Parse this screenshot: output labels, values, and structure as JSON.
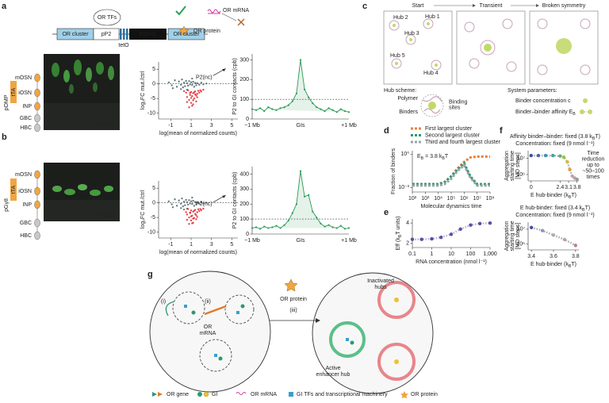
{
  "a": {
    "letter": "a",
    "schematic": {
      "or_tfs": "OR TFs",
      "cluster_left": "OR cluster",
      "promoter": "pP2",
      "operator": "tetO",
      "transgene": "P2(nc)",
      "cluster_right": "OR cluster",
      "mrna": "OR mRNA",
      "protein": "OR protein"
    },
    "lineage": {
      "cells": [
        "mOSN",
        "iOSN",
        "INP",
        "GBC",
        "HBC"
      ],
      "promoter": "pOMP",
      "driver": "tTA"
    },
    "image_labels": {
      "p2": "P2",
      "gfp": "GFP"
    },
    "volcano": {
      "type": "scatter",
      "xlabel": "log(mean of normalized counts)",
      "ylabel": "log₂FC mut./ctrl",
      "xlim": [
        -2.2,
        5.6
      ],
      "xticks": [
        -1,
        1,
        3,
        5
      ],
      "ylim": [
        -12,
        7.5
      ],
      "yticks": [
        5,
        0,
        -5,
        -10
      ],
      "reference_line": 0,
      "series": [
        {
          "color": "#4d6466",
          "x": [
            -1.2,
            -0.9,
            -0.6,
            -0.4,
            -0.2,
            0,
            0.1,
            0.2,
            0.3,
            0.4,
            0.5,
            0.6,
            0.7,
            0.8,
            0.9,
            1.0,
            1.1,
            1.2,
            1.3,
            1.4,
            1.5,
            1.6,
            1.8,
            2.0,
            2.2,
            2.5,
            -0.8,
            0.0,
            0.6,
            1.1
          ],
          "y": [
            0.5,
            -0.5,
            1.2,
            -1.0,
            0.8,
            -0.3,
            1.5,
            -1.2,
            0.4,
            -0.8,
            1.0,
            0.2,
            -0.6,
            0.9,
            -0.2,
            0.5,
            -0.4,
            0.7,
            -1.0,
            0.3,
            -0.5,
            0.2,
            -0.3,
            0.4,
            -0.2,
            0.1,
            -1.5,
            -1.8,
            -2.0,
            1.8
          ]
        },
        {
          "color": "#e3232c",
          "x": [
            0.3,
            0.5,
            0.6,
            0.7,
            0.8,
            0.9,
            1.0,
            1.0,
            1.1,
            1.2,
            1.2,
            1.3,
            1.4,
            1.5,
            1.5,
            1.6,
            1.7,
            1.8,
            1.9,
            2.0,
            0.8,
            1.0,
            1.2,
            1.4,
            0.6,
            1.1,
            1.3,
            0.9,
            1.6,
            2.2
          ],
          "y": [
            -2.5,
            -3.0,
            -4.5,
            -2.2,
            -5.5,
            -3.8,
            -6.5,
            -2.8,
            -4.2,
            -7.0,
            -3.2,
            -5.0,
            -2.6,
            -4.0,
            -6.0,
            -3.4,
            -2.4,
            -3.0,
            -2.2,
            -2.6,
            -8.0,
            -4.8,
            -5.6,
            -3.6,
            -6.2,
            -7.5,
            -2.9,
            -3.1,
            -4.6,
            -2.0
          ]
        }
      ],
      "annotation": {
        "label": "P2(nc)",
        "x": 4.4,
        "y": 5.2
      }
    },
    "contacts": {
      "type": "line",
      "ylabel": "P2 to GI contacts (cpb)",
      "categories": [
        "−1 Mb",
        null,
        null,
        null,
        null,
        null,
        null,
        null,
        null,
        null,
        null,
        null,
        "GIs",
        null,
        null,
        null,
        null,
        null,
        null,
        null,
        null,
        null,
        null,
        null,
        "+1 Mb"
      ],
      "values": [
        50,
        45,
        55,
        40,
        60,
        50,
        45,
        55,
        60,
        70,
        90,
        130,
        300,
        150,
        110,
        80,
        60,
        50,
        40,
        55,
        45,
        35,
        50,
        40,
        35
      ],
      "ylim": [
        0,
        330
      ],
      "yticks": [
        0,
        100,
        200,
        300
      ],
      "threshold": 100,
      "color": "#2b9a55"
    }
  },
  "b": {
    "letter": "b",
    "lineage": {
      "cells": [
        "mOSN",
        "iOSN",
        "INP",
        "GBC",
        "HBC"
      ],
      "promoter": "pGγ8",
      "driver": "tTA"
    },
    "image_labels": {
      "p2": "P2",
      "gfp": "GFP"
    },
    "volcano": {
      "type": "scatter",
      "xlabel": "log(mean of normalized counts)",
      "ylabel": "log₂FC mut./ctrl",
      "xlim": [
        -2.2,
        5.6
      ],
      "xticks": [
        -1,
        1,
        3,
        5
      ],
      "ylim": [
        -12,
        7.5
      ],
      "yticks": [
        5,
        0,
        -5,
        -10
      ],
      "reference_line": 0,
      "series": [
        {
          "color": "#4d6466",
          "x": [
            -1.2,
            -0.9,
            -0.6,
            -0.4,
            -0.2,
            0,
            0.1,
            0.2,
            0.3,
            0.4,
            0.5,
            0.6,
            0.7,
            0.8,
            0.9,
            1.0,
            1.1,
            1.2,
            1.3,
            1.4,
            1.5,
            1.6,
            1.8,
            2.0,
            2.2,
            2.5,
            -0.8,
            0.0,
            0.6,
            1.1
          ],
          "y": [
            0.5,
            -0.5,
            1.2,
            -1.0,
            0.8,
            -0.3,
            1.5,
            -1.2,
            0.4,
            -0.8,
            1.0,
            0.2,
            -0.6,
            0.9,
            -0.2,
            0.5,
            -0.4,
            0.7,
            -1.0,
            0.3,
            -0.5,
            0.2,
            -0.3,
            0.4,
            -0.2,
            0.1,
            -1.5,
            -1.8,
            -2.0,
            1.8
          ]
        },
        {
          "color": "#e3232c",
          "x": [
            0.3,
            0.5,
            0.6,
            0.7,
            0.8,
            0.9,
            1.0,
            1.0,
            1.1,
            1.2,
            1.2,
            1.3,
            1.4,
            1.5,
            1.5,
            1.6,
            1.7,
            1.8,
            1.9,
            2.0,
            0.8,
            1.0,
            1.2,
            1.4,
            0.6,
            1.1,
            1.3,
            0.9,
            1.6,
            2.2
          ],
          "y": [
            -2.3,
            -3.2,
            -4.0,
            -2.1,
            -5.0,
            -3.5,
            -6.0,
            -2.6,
            -4.4,
            -6.8,
            -3.0,
            -5.2,
            -2.4,
            -4.2,
            -5.6,
            -3.2,
            -2.2,
            -2.8,
            -2.1,
            -2.5,
            -7.2,
            -4.6,
            -5.4,
            -3.8,
            -5.8,
            -7.0,
            -2.7,
            -3.3,
            -4.8,
            -2.0
          ]
        }
      ],
      "annotation": {
        "label": "P2(nc)",
        "x": 4.4,
        "y": 2.6
      }
    },
    "contacts": {
      "type": "line",
      "ylabel": "P2 to GI contacts (cpb)",
      "categories": [
        "−1 Mb",
        null,
        null,
        null,
        null,
        null,
        null,
        null,
        null,
        null,
        null,
        null,
        "GIs",
        null,
        null,
        null,
        null,
        null,
        null,
        null,
        null,
        null,
        null,
        null,
        "+1 Mb"
      ],
      "values": [
        40,
        45,
        35,
        50,
        40,
        45,
        55,
        40,
        60,
        90,
        140,
        200,
        420,
        250,
        260,
        150,
        110,
        70,
        50,
        60,
        45,
        40,
        55,
        35,
        40
      ],
      "ylim": [
        0,
        450
      ],
      "yticks": [
        0,
        100,
        200,
        300,
        400
      ],
      "threshold": 100,
      "color": "#2b9a55"
    }
  },
  "c": {
    "letter": "c",
    "stages": [
      "Start",
      "Transient",
      "Broken symmetry"
    ],
    "hubs": [
      "Hub 1",
      "Hub 2",
      "Hub 3",
      "Hub 4",
      "Hub 5"
    ],
    "scheme_title": "Hub scheme:",
    "scheme_labels": {
      "polymer": "Polymer",
      "binders": "Binders",
      "sites": [
        "Binding",
        "sites"
      ]
    },
    "params_title": "System parameters:",
    "params": {
      "concentration": "Binder concentration c",
      "affinity": {
        "parts": [
          "Binder–binder affinity E",
          "B"
        ]
      }
    }
  },
  "d": {
    "letter": "d",
    "type": "line",
    "ylabel": "Fraction of binders",
    "xlabel": "Molecular dynamics time",
    "annotation": {
      "parts": [
        "E",
        "B",
        " = 3.8 k",
        "B",
        "T"
      ]
    },
    "xlog": true,
    "ylog": true,
    "x": [
      100,
      300,
      1000,
      3000,
      10000,
      30000,
      100000,
      300000,
      1000000,
      3000000,
      10000000,
      30000000,
      100000000
    ],
    "xlim": [
      100,
      100000000
    ],
    "xticks": [
      {
        "value": 100,
        "label": "10²"
      },
      {
        "value": 1000,
        "label": "10³"
      },
      {
        "value": 10000,
        "label": "10⁴"
      },
      {
        "value": 100000,
        "label": "10⁵"
      },
      {
        "value": 1000000,
        "label": "10⁶"
      },
      {
        "value": 10000000,
        "label": "10⁷"
      },
      {
        "value": 100000000,
        "label": "10⁸"
      }
    ],
    "ylim": [
      0.0004,
      2
    ],
    "yticks": [
      {
        "value": 0.001,
        "label": "10⁻³"
      },
      {
        "value": 1,
        "label": "10⁰"
      }
    ],
    "series": [
      {
        "name": "First largest cluster",
        "color": "#e8803a",
        "values": [
          0.002,
          0.002,
          0.002,
          0.002,
          0.002,
          0.003,
          0.01,
          0.05,
          0.2,
          0.5,
          0.6,
          0.6,
          0.6
        ]
      },
      {
        "name": "Second largest cluster",
        "color": "#2a9a73",
        "values": [
          0.002,
          0.002,
          0.002,
          0.002,
          0.002,
          0.003,
          0.01,
          0.04,
          0.15,
          0.01,
          0.002,
          0.002,
          0.002
        ]
      },
      {
        "name": "Third and fourth largest cluster",
        "color": "#9aa3a8",
        "values": [
          0.0015,
          0.0015,
          0.0015,
          0.0015,
          0.0015,
          0.002,
          0.006,
          0.03,
          0.1,
          0.008,
          0.0015,
          0.0015,
          0.0015
        ]
      }
    ]
  },
  "e": {
    "letter": "e",
    "type": "line",
    "ylabel": {
      "parts": [
        "Eff (k",
        "B",
        "T units)"
      ]
    },
    "xlabel": "RNA concentration (nmol l⁻¹)",
    "xlog": true,
    "x": [
      0.1,
      0.3,
      1,
      3,
      10,
      30,
      100,
      300,
      1000
    ],
    "values": [
      2.4,
      2.4,
      2.45,
      2.6,
      2.9,
      3.4,
      3.8,
      3.95,
      4.0
    ],
    "xlim": [
      0.1,
      1000
    ],
    "xticks": [
      0.1,
      1,
      10,
      100,
      {
        "value": 1000,
        "label": "1,000"
      }
    ],
    "ylim": [
      1.6,
      4.4
    ],
    "yticks": [
      2,
      4
    ],
    "color": "#5a4ea0",
    "line_color": "#b6aedc"
  },
  "f": {
    "letter": "f",
    "top": {
      "type": "line",
      "header": [
        {
          "parts": [
            "Affinity binder–binder: fixed (3.8 k",
            "B",
            "T)"
          ]
        },
        "Concentration: fixed (9 nmol l⁻¹)"
      ],
      "ylabel": [
        "Aggregation",
        "starting time",
        "[MD steps]"
      ],
      "xlabel": {
        "parts": [
          "E hub-binder (k",
          "B",
          "T)"
        ]
      },
      "note": [
        "Time",
        "reduction",
        "up to",
        "~50–100",
        "times"
      ],
      "x": [
        0,
        0.6,
        1.2,
        1.8,
        2.4,
        2.7,
        3.0,
        3.2,
        3.4,
        3.6,
        3.8
      ],
      "values": [
        15000000,
        15000000,
        15000000,
        15000000,
        14000000,
        12000000,
        6000000,
        2000000,
        800000,
        600000,
        500000
      ],
      "colors": [
        "#3d4fa0",
        "#4a66b0",
        "#3f8fb8",
        "#3aa69a",
        "#56b36a",
        "#9cbf4a",
        "#d9b93a",
        "#e89a3a",
        "#c9a0b0",
        "#a8a8b0",
        "#9a9aa0"
      ],
      "line_color": "#a9a9ad",
      "ylog": true,
      "xlim": [
        -0.25,
        3.95
      ],
      "xticks": [
        0,
        2.4,
        3.1,
        3.8
      ],
      "ylim": [
        400000,
        30000000
      ],
      "yticks": [
        {
          "value": 1000000,
          "label": "10⁶"
        },
        {
          "value": 10000000,
          "label": "10⁷"
        }
      ]
    },
    "bottom": {
      "type": "line",
      "header": [
        {
          "parts": [
            "E hub-binder: fixed (3.4 k",
            "B",
            "T)"
          ]
        },
        "Concentration: fixed (9 nmol l⁻¹)"
      ],
      "ylabel": [
        "Aggregation",
        "starting time",
        "[MD steps]"
      ],
      "xlabel": {
        "parts": [
          "E hub-binder (k",
          "B",
          "T)"
        ]
      },
      "x": [
        3.4,
        3.5,
        3.6,
        3.7,
        3.8
      ],
      "values": [
        13000000,
        8000000,
        4000000,
        2000000,
        800000
      ],
      "colors": [
        "#4a4aa0",
        "#8a96b8",
        "#a8acb4",
        "#b8a0b0",
        "#c07898"
      ],
      "line_color": "#a9a9ad",
      "ylog": true,
      "xlim": [
        3.37,
        3.83
      ],
      "xticks": [
        3.4,
        3.6,
        3.8
      ],
      "ylim": [
        400000,
        30000000
      ],
      "yticks": [
        {
          "value": 1000000,
          "label": "10⁶"
        },
        {
          "value": 10000000,
          "label": "10⁷"
        }
      ]
    }
  },
  "g": {
    "letter": "g",
    "labels": {
      "step1": "(i)",
      "step2": "(ii)",
      "step3": "(iii)",
      "mrna": [
        "OR",
        "mRNA"
      ],
      "protein": "OR protein",
      "inactive": [
        "Inactivated",
        "hubs"
      ],
      "active": [
        "Active",
        "enhancer hub"
      ]
    },
    "legend": {
      "or_gene": "OR gene",
      "gi": "GI",
      "mrna": "OR mRNA",
      "tfs": "GI TFs and transcriptional machinery",
      "protein": "OR protein"
    }
  }
}
